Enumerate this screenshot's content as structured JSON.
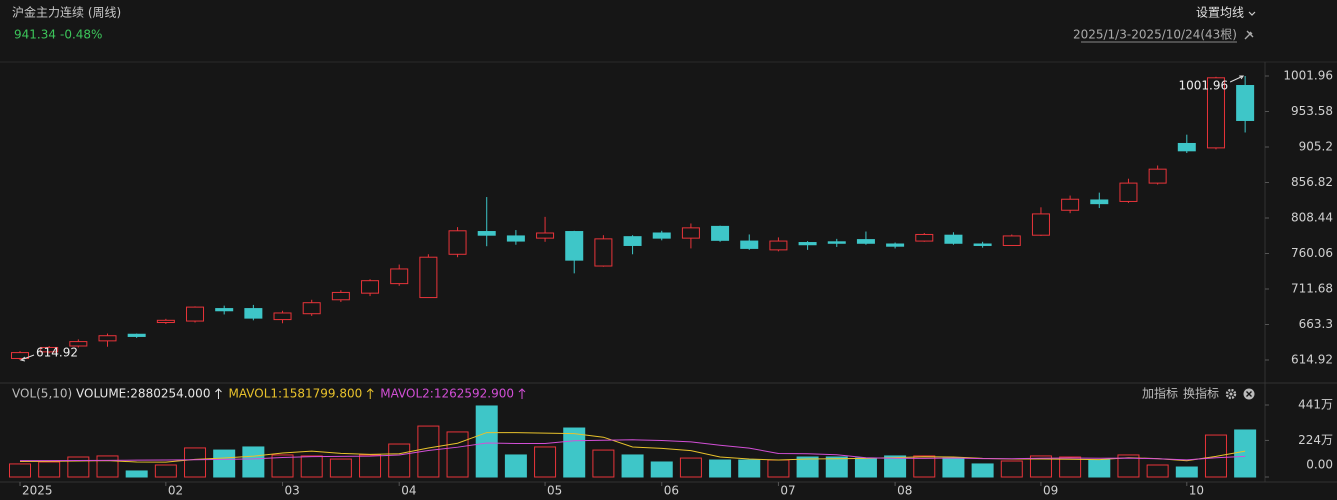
{
  "header": {
    "title": "沪金主力连续 (周线)",
    "last": 941.34,
    "change": {
      "value": -0.48,
      "label": "-0.48%"
    },
    "ma_button": "设置均线",
    "range": "2025/1/3-2025/10/24(43根)",
    "indicator": "VOL(5,10)",
    "buttons": [
      "加指标",
      "换指标"
    ]
  },
  "chart_data": [
    {
      "type": "candlestick",
      "up_color": "#e8343a",
      "down_color": "#3ec6c8",
      "categories": [
        "2025",
        null,
        null,
        null,
        null,
        "02",
        null,
        null,
        null,
        "03",
        null,
        null,
        null,
        "04",
        null,
        null,
        null,
        null,
        "05",
        null,
        null,
        null,
        "06",
        null,
        null,
        null,
        "07",
        null,
        null,
        null,
        "08",
        null,
        null,
        null,
        null,
        "09",
        null,
        null,
        null,
        null,
        "10",
        null,
        null
      ],
      "series": {
        "open": [
          617,
          626,
          634,
          641,
          650,
          666,
          668,
          685,
          685,
          670,
          678,
          697,
          706,
          719,
          700,
          759,
          790,
          784,
          781,
          790,
          743,
          783,
          788,
          781,
          797,
          777,
          765,
          775,
          776,
          779,
          773,
          777,
          785,
          773,
          771,
          785,
          819,
          833,
          831,
          856,
          910,
          904,
          989
        ],
        "high": [
          627,
          634,
          643,
          651,
          651,
          671,
          688,
          689,
          690,
          682,
          697,
          710,
          725,
          745,
          759,
          796,
          837,
          792,
          810,
          791,
          785,
          785,
          791,
          801,
          798,
          786,
          782,
          777,
          780,
          790,
          775,
          788,
          789,
          776,
          786,
          823,
          839,
          843,
          862,
          880,
          922,
          1000.9,
          1001.96
        ],
        "low": [
          614.92,
          624,
          632,
          633,
          645,
          664,
          666,
          677,
          669,
          665,
          675,
          694,
          702,
          716,
          700,
          755,
          770,
          772,
          776,
          733,
          742,
          759,
          778,
          767,
          776,
          765,
          763,
          765,
          769,
          772,
          767,
          776,
          772,
          768,
          771,
          784,
          815,
          822,
          829,
          854,
          897,
          902,
          925
        ],
        "close": [
          625,
          632,
          640,
          648,
          647,
          669,
          687,
          682,
          672,
          679,
          693,
          707,
          723,
          739,
          755,
          791,
          785,
          777,
          788,
          751,
          780,
          771,
          781,
          795,
          778,
          767,
          777,
          772,
          774,
          774,
          770,
          786,
          774,
          771,
          784,
          814,
          834,
          828,
          856,
          875,
          900,
          999.5,
          941.34
        ]
      },
      "ylim": [
        587.66,
        1021.04
      ],
      "yticks": [
        614.92,
        663.3,
        711.68,
        760.06,
        808.44,
        856.82,
        905.2,
        953.58,
        1001.96
      ]
    },
    {
      "type": "bar",
      "series": [
        {
          "name": "VOLUME:2880254.000",
          "type": "bar",
          "color": "#e6e6e6",
          "values": [
            800000,
            920000,
            1225000,
            1290000,
            370000,
            735000,
            1780000,
            1650000,
            1840000,
            1350000,
            1290000,
            1100000,
            1350000,
            2020000,
            3120000,
            2760000,
            4350000,
            1350000,
            1840000,
            3000000,
            1650000,
            1350000,
            920000,
            1160000,
            1040000,
            1040000,
            1040000,
            1225000,
            1225000,
            1160000,
            1290000,
            1290000,
            1160000,
            800000,
            980000,
            1290000,
            1225000,
            1040000,
            1350000,
            735000,
            612000,
            2570000,
            2880254
          ]
        },
        {
          "name": "MAVOL1:1581799.800",
          "type": "line",
          "color": "#e8c22c",
          "values": [
            950000,
            960000,
            980000,
            1000000,
            921000,
            908000,
            1080000,
            1165000,
            1275000,
            1471000,
            1582000,
            1446000,
            1386000,
            1422000,
            1776000,
            2070000,
            2720000,
            2720000,
            2684000,
            2660000,
            2438000,
            1838000,
            1752000,
            1616000,
            1224000,
            1102000,
            1040000,
            1101000,
            1114000,
            1138000,
            1188000,
            1238000,
            1225000,
            1140000,
            1104000,
            1104000,
            1091000,
            1067000,
            1177000,
            1128000,
            992000,
            1261000,
            1581799.8
          ]
        },
        {
          "name": "MAVOL2:1262592.900",
          "type": "line",
          "color": "#d24fd6",
          "values": [
            1000000,
            1000000,
            1010000,
            1020000,
            1030000,
            1040000,
            1060000,
            1080000,
            1110000,
            1196000,
            1245000,
            1263000,
            1276000,
            1349000,
            1624000,
            1826000,
            2083000,
            2053000,
            2053000,
            2218000,
            2254000,
            2279000,
            2236000,
            2150000,
            1942000,
            1770000,
            1439000,
            1427000,
            1365000,
            1181000,
            1145000,
            1139000,
            1163000,
            1127000,
            1121000,
            1146000,
            1165000,
            1146000,
            1159000,
            1116000,
            1048000,
            1176000,
            1262592.9
          ]
        }
      ],
      "ylim": [
        0,
        4410000
      ],
      "yticks": [
        {
          "value": 0,
          "label": "0.00"
        },
        {
          "value": 2240000,
          "label": "224万"
        },
        {
          "value": 4410000,
          "label": "441万"
        }
      ]
    }
  ]
}
